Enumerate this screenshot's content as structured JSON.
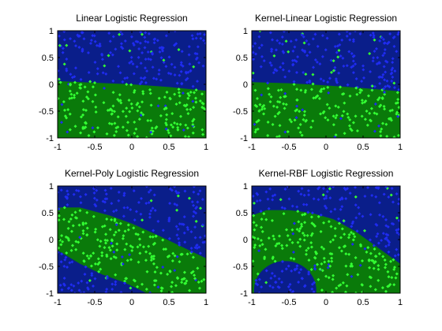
{
  "figure": {
    "background": "#ffffff"
  },
  "colors": {
    "region_blue": "#0a1e8a",
    "region_green": "#0a7a0a",
    "points_blue": "#1f2cf0",
    "points_green": "#33ff33",
    "axis": "#000000"
  },
  "chart_data": [
    {
      "type": "scatter",
      "title": "Linear Logistic Regression",
      "xlim": [
        -1,
        1
      ],
      "ylim": [
        -1,
        1
      ],
      "xticks": [
        "-1",
        "-0.5",
        "0",
        "0.5",
        "1"
      ],
      "yticks": [
        "-1",
        "-0.5",
        "0",
        "0.5",
        "1"
      ],
      "grid": false,
      "decision_boundary": {
        "x": [
          -1,
          -0.5,
          0,
          0.5,
          1
        ],
        "y": [
          0.06,
          0.03,
          0.0,
          -0.05,
          -0.12
        ],
        "green_side": "below"
      },
      "points_per_class": 190
    },
    {
      "type": "scatter",
      "title": "Kernel-Linear Logistic Regression",
      "xlim": [
        -1,
        1
      ],
      "ylim": [
        -1,
        1
      ],
      "xticks": [
        "-1",
        "-0.5",
        "0",
        "0.5",
        "1"
      ],
      "yticks": [
        "-1",
        "-0.5",
        "0",
        "0.5",
        "1"
      ],
      "grid": false,
      "decision_boundary": {
        "x": [
          -1,
          -0.5,
          0,
          0.5,
          1
        ],
        "y": [
          0.04,
          0.02,
          -0.02,
          -0.07,
          -0.13
        ],
        "green_side": "below"
      },
      "points_per_class": 190
    },
    {
      "type": "scatter",
      "title": "Kernel-Poly Logistic Regression",
      "xlim": [
        -1,
        1
      ],
      "ylim": [
        -1,
        1
      ],
      "xticks": [
        "-1",
        "-0.5",
        "0",
        "0.5",
        "1"
      ],
      "yticks": [
        "-1",
        "-0.5",
        "0",
        "0.5",
        "1"
      ],
      "grid": false,
      "band": {
        "upper": {
          "x": [
            -1,
            -0.7,
            -0.3,
            0,
            0.4,
            0.7,
            1
          ],
          "y": [
            0.6,
            0.6,
            0.45,
            0.3,
            0.05,
            -0.15,
            -0.35
          ]
        },
        "lower": {
          "x": [
            -1,
            -0.7,
            -0.4,
            -0.1,
            0.2,
            0.5,
            0.8,
            1
          ],
          "y": [
            -0.2,
            -0.45,
            -0.65,
            -0.8,
            -1.0,
            -1.0,
            -1.0,
            -1.0
          ]
        }
      },
      "points_per_class": 190
    },
    {
      "type": "scatter",
      "title": "Kernel-RBF Logistic Regression",
      "xlim": [
        -1,
        1
      ],
      "ylim": [
        -1,
        1
      ],
      "xticks": [
        "-1",
        "-0.5",
        "0",
        "0.5",
        "1"
      ],
      "yticks": [
        "-1",
        "-0.5",
        "0",
        "0.5",
        "1"
      ],
      "grid": false,
      "band": {
        "upper": {
          "x": [
            -1,
            -0.8,
            -0.5,
            -0.2,
            0.1,
            0.4,
            0.7,
            1
          ],
          "y": [
            0.45,
            0.55,
            0.55,
            0.5,
            0.38,
            0.15,
            -0.15,
            -0.45
          ]
        },
        "lower_hole": {
          "cx": -0.55,
          "cy": -0.95,
          "rx": 0.42,
          "ry": 0.55
        }
      },
      "points_per_class": 190
    }
  ]
}
